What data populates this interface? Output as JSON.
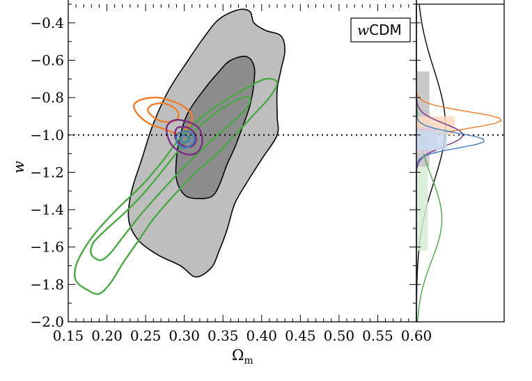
{
  "chart_data": {
    "type": "contour",
    "title": "",
    "xlabel": "Ω",
    "xlabel_sub": "m",
    "ylabel": "w",
    "xlim": [
      0.15,
      0.6
    ],
    "ylim": [
      -2.0,
      -0.3
    ],
    "xticks": [
      "0.15",
      "0.20",
      "0.25",
      "0.30",
      "0.35",
      "0.40",
      "0.45",
      "0.50",
      "0.55",
      "0.60"
    ],
    "yticks": [
      "−2.0",
      "−1.8",
      "−1.6",
      "−1.4",
      "−1.2",
      "−1.0",
      "−0.8",
      "−0.6",
      "−0.4"
    ],
    "ytick_values": [
      -2.0,
      -1.8,
      -1.6,
      -1.4,
      -1.2,
      -1.0,
      -0.8,
      -0.6,
      -0.4
    ],
    "xtick_values": [
      0.15,
      0.2,
      0.25,
      0.3,
      0.35,
      0.4,
      0.45,
      0.5,
      0.55,
      0.6
    ],
    "legend_label": "wCDM",
    "legend_label_prefix": "w",
    "legend_label_suffix": "CDM",
    "legend_position": "top-right",
    "reference_line": {
      "axis": "y",
      "value": -1.0,
      "style": "dotted"
    },
    "series": [
      {
        "color": "#000000",
        "fill": "#bebebe",
        "fill_inner": "#8c8c8c",
        "outer": [
          [
            0.265,
            -1.64
          ],
          [
            0.24,
            -1.56
          ],
          [
            0.228,
            -1.45
          ],
          [
            0.232,
            -1.3
          ],
          [
            0.245,
            -1.13
          ],
          [
            0.26,
            -0.94
          ],
          [
            0.28,
            -0.76
          ],
          [
            0.305,
            -0.6
          ],
          [
            0.325,
            -0.48
          ],
          [
            0.345,
            -0.38
          ],
          [
            0.37,
            -0.33
          ],
          [
            0.385,
            -0.34
          ],
          [
            0.39,
            -0.4
          ],
          [
            0.405,
            -0.44
          ],
          [
            0.425,
            -0.47
          ],
          [
            0.43,
            -0.55
          ],
          [
            0.425,
            -0.65
          ],
          [
            0.42,
            -0.76
          ],
          [
            0.42,
            -0.9
          ],
          [
            0.42,
            -1.0
          ],
          [
            0.4,
            -1.13
          ],
          [
            0.38,
            -1.26
          ],
          [
            0.365,
            -1.37
          ],
          [
            0.355,
            -1.51
          ],
          [
            0.345,
            -1.62
          ],
          [
            0.335,
            -1.71
          ],
          [
            0.315,
            -1.76
          ],
          [
            0.295,
            -1.7
          ]
        ],
        "inner": [
          [
            0.315,
            -1.34
          ],
          [
            0.3,
            -1.32
          ],
          [
            0.29,
            -1.24
          ],
          [
            0.29,
            -1.12
          ],
          [
            0.295,
            -1.0
          ],
          [
            0.305,
            -0.88
          ],
          [
            0.325,
            -0.76
          ],
          [
            0.345,
            -0.66
          ],
          [
            0.36,
            -0.6
          ],
          [
            0.38,
            -0.58
          ],
          [
            0.39,
            -0.63
          ],
          [
            0.39,
            -0.72
          ],
          [
            0.385,
            -0.84
          ],
          [
            0.375,
            -0.96
          ],
          [
            0.365,
            -1.07
          ],
          [
            0.355,
            -1.16
          ],
          [
            0.345,
            -1.27
          ],
          [
            0.335,
            -1.33
          ]
        ]
      },
      {
        "color": "#4aa844",
        "fill": "none",
        "outer": [
          [
            0.19,
            -1.85
          ],
          [
            0.175,
            -1.83
          ],
          [
            0.16,
            -1.78
          ],
          [
            0.16,
            -1.7
          ],
          [
            0.172,
            -1.6
          ],
          [
            0.19,
            -1.5
          ],
          [
            0.215,
            -1.39
          ],
          [
            0.245,
            -1.27
          ],
          [
            0.27,
            -1.15
          ],
          [
            0.29,
            -1.04
          ],
          [
            0.31,
            -0.95
          ],
          [
            0.33,
            -0.88
          ],
          [
            0.355,
            -0.81
          ],
          [
            0.38,
            -0.75
          ],
          [
            0.405,
            -0.7
          ],
          [
            0.42,
            -0.72
          ],
          [
            0.41,
            -0.8
          ],
          [
            0.39,
            -0.89
          ],
          [
            0.37,
            -0.98
          ],
          [
            0.345,
            -1.09
          ],
          [
            0.315,
            -1.2
          ],
          [
            0.285,
            -1.33
          ],
          [
            0.26,
            -1.45
          ],
          [
            0.24,
            -1.57
          ],
          [
            0.22,
            -1.69
          ],
          [
            0.205,
            -1.79
          ]
        ],
        "inner": [
          [
            0.192,
            -1.67
          ],
          [
            0.18,
            -1.64
          ],
          [
            0.182,
            -1.58
          ],
          [
            0.198,
            -1.51
          ],
          [
            0.222,
            -1.42
          ],
          [
            0.248,
            -1.31
          ],
          [
            0.272,
            -1.19
          ],
          [
            0.295,
            -1.07
          ],
          [
            0.318,
            -0.96
          ],
          [
            0.345,
            -0.87
          ],
          [
            0.37,
            -0.81
          ],
          [
            0.385,
            -0.8
          ],
          [
            0.38,
            -0.86
          ],
          [
            0.36,
            -0.94
          ],
          [
            0.335,
            -1.03
          ],
          [
            0.305,
            -1.15
          ],
          [
            0.275,
            -1.28
          ],
          [
            0.245,
            -1.42
          ],
          [
            0.22,
            -1.55
          ],
          [
            0.205,
            -1.63
          ]
        ]
      },
      {
        "color": "#ef7d2a",
        "fill": "none",
        "outer": [
          [
            0.275,
            -0.97
          ],
          [
            0.255,
            -0.94
          ],
          [
            0.24,
            -0.89
          ],
          [
            0.235,
            -0.84
          ],
          [
            0.245,
            -0.81
          ],
          [
            0.265,
            -0.8
          ],
          [
            0.285,
            -0.82
          ],
          [
            0.3,
            -0.85
          ],
          [
            0.31,
            -0.9
          ],
          [
            0.305,
            -0.96
          ],
          [
            0.29,
            -0.99
          ]
        ],
        "inner": [
          [
            0.275,
            -0.93
          ],
          [
            0.262,
            -0.91
          ],
          [
            0.253,
            -0.87
          ],
          [
            0.258,
            -0.84
          ],
          [
            0.272,
            -0.83
          ],
          [
            0.285,
            -0.85
          ],
          [
            0.292,
            -0.88
          ],
          [
            0.29,
            -0.92
          ]
        ]
      },
      {
        "color": "#7b2d84",
        "fill": "none",
        "outer": [
          [
            0.3,
            -1.1
          ],
          [
            0.285,
            -1.06
          ],
          [
            0.278,
            -1.0
          ],
          [
            0.278,
            -0.95
          ],
          [
            0.288,
            -0.92
          ],
          [
            0.305,
            -0.93
          ],
          [
            0.318,
            -0.96
          ],
          [
            0.323,
            -1.01
          ],
          [
            0.322,
            -1.06
          ],
          [
            0.314,
            -1.1
          ]
        ],
        "inner": [
          [
            0.3,
            -1.06
          ],
          [
            0.29,
            -1.03
          ],
          [
            0.288,
            -0.99
          ],
          [
            0.292,
            -0.96
          ],
          [
            0.304,
            -0.96
          ],
          [
            0.313,
            -0.99
          ],
          [
            0.315,
            -1.03
          ],
          [
            0.31,
            -1.06
          ]
        ]
      },
      {
        "color": "#3f7fc0",
        "fill": "none",
        "outer": [
          [
            0.3,
            -1.07
          ],
          [
            0.292,
            -1.05
          ],
          [
            0.29,
            -1.02
          ],
          [
            0.293,
            -0.99
          ],
          [
            0.301,
            -0.98
          ],
          [
            0.309,
            -0.99
          ],
          [
            0.313,
            -1.02
          ],
          [
            0.31,
            -1.05
          ]
        ],
        "inner": [
          [
            0.3,
            -1.04
          ],
          [
            0.296,
            -1.03
          ],
          [
            0.296,
            -1.01
          ],
          [
            0.3,
            -1.0
          ],
          [
            0.305,
            -1.01
          ],
          [
            0.307,
            -1.03
          ]
        ]
      }
    ],
    "marginal_w": [
      {
        "color": "#000000",
        "fill": "#bebebe",
        "band": [
          -1.17,
          -0.66
        ],
        "peak": -0.95,
        "width": 0.3,
        "height": 0.33
      },
      {
        "color": "#4aa844",
        "fill": "#d6ecd3",
        "band": [
          -1.62,
          -1.17
        ],
        "peak": -1.45,
        "width": 0.22,
        "height": 0.29
      },
      {
        "color": "#ef7d2a",
        "fill": "#fbd9bf",
        "band": [
          -1.0,
          -0.9
        ],
        "peak": -0.92,
        "width": 0.045,
        "height": 0.97
      },
      {
        "color": "#7b2d84",
        "fill": "#d8c9dc",
        "band": [
          -1.1,
          -0.96
        ],
        "peak": -1.0,
        "width": 0.06,
        "height": 0.53
      },
      {
        "color": "#3f7fc0",
        "fill": "#c9dbef",
        "band": [
          -1.08,
          -0.98
        ],
        "peak": -1.03,
        "width": 0.04,
        "height": 0.78
      }
    ]
  }
}
